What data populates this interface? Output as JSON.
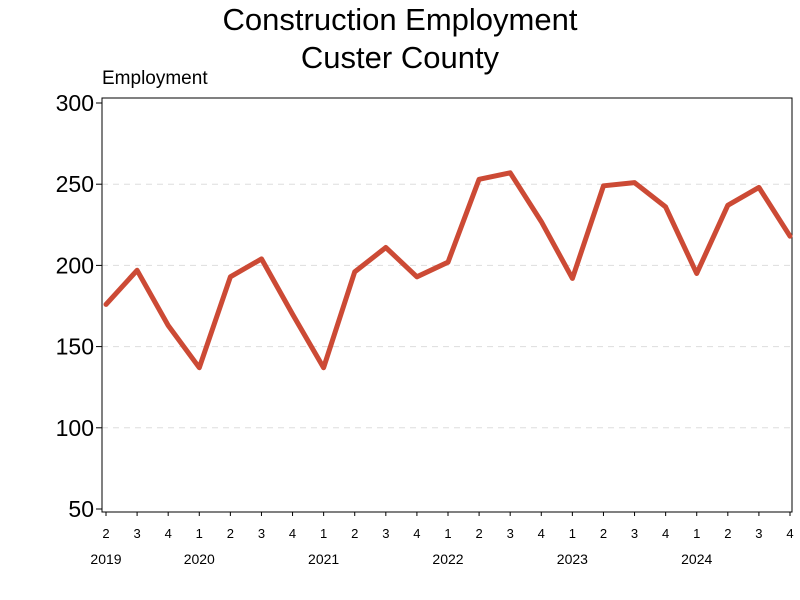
{
  "chart_data": {
    "type": "line",
    "title": [
      "Construction Employment",
      "Custer County"
    ],
    "ylabel": "Employment",
    "xlabel": "",
    "ylim": [
      50,
      300
    ],
    "yticks": [
      50,
      100,
      150,
      200,
      250,
      300
    ],
    "grid": "horizontal dashed",
    "line_color": "#cc4a35",
    "quarters": [
      "2",
      "3",
      "4",
      "1",
      "2",
      "3",
      "4",
      "1",
      "2",
      "3",
      "4",
      "1",
      "2",
      "3",
      "4",
      "1",
      "2",
      "3",
      "4",
      "1",
      "2",
      "3",
      "4"
    ],
    "years": [
      {
        "label": "2019",
        "start_index": 0
      },
      {
        "label": "2020",
        "start_index": 3
      },
      {
        "label": "2021",
        "start_index": 7
      },
      {
        "label": "2022",
        "start_index": 11
      },
      {
        "label": "2023",
        "start_index": 15
      },
      {
        "label": "2024",
        "start_index": 19
      }
    ],
    "series": [
      {
        "values": [
          176,
          197,
          163,
          137,
          193,
          204,
          170,
          137,
          196,
          211,
          193,
          202,
          253,
          257,
          227,
          192,
          249,
          251,
          236,
          195,
          237,
          248,
          218
        ]
      }
    ]
  }
}
